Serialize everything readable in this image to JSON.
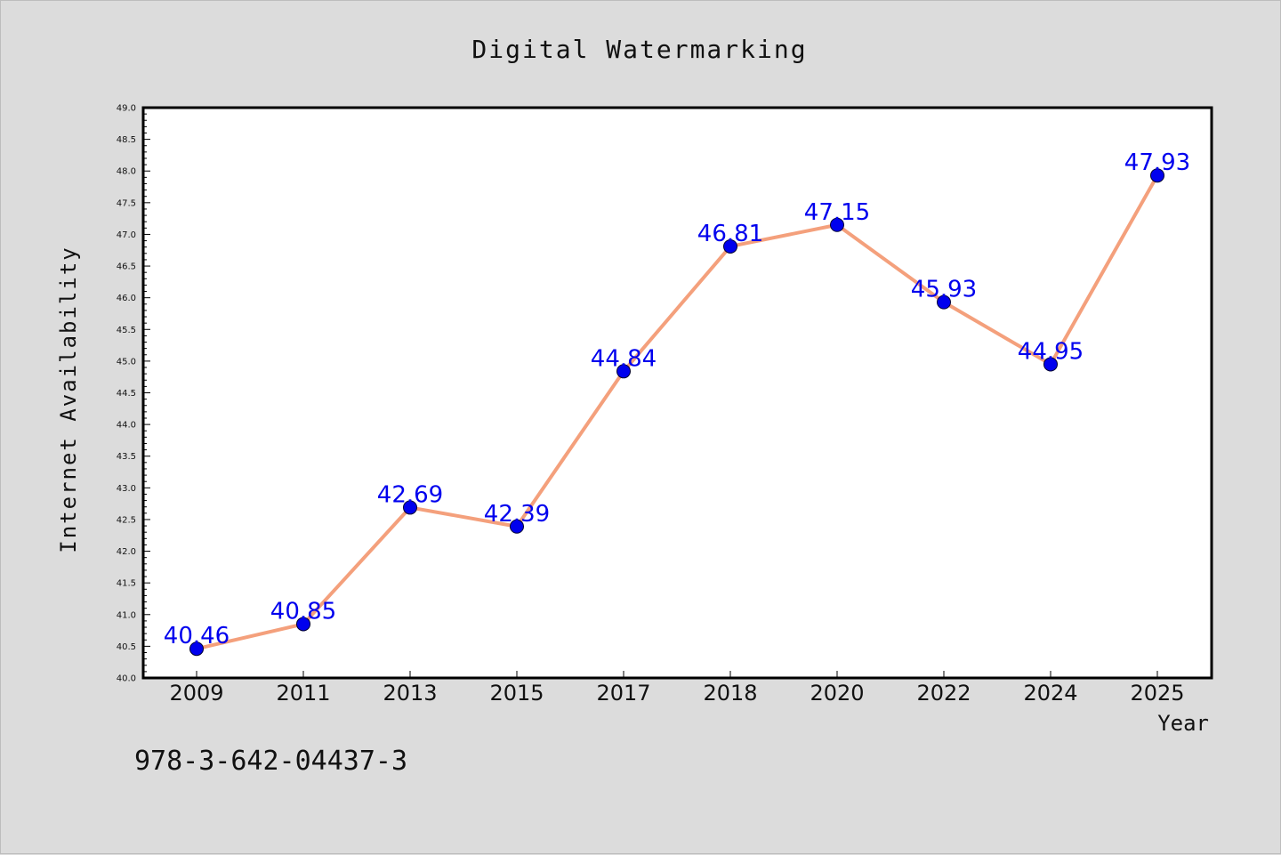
{
  "chart_data": {
    "type": "line",
    "title": "Digital Watermarking",
    "xlabel": "Year",
    "ylabel": "Internet Availability",
    "categories": [
      "2009",
      "2011",
      "2013",
      "2015",
      "2017",
      "2018",
      "2020",
      "2022",
      "2024",
      "2025"
    ],
    "series": [
      {
        "values": [
          40.46,
          40.85,
          42.69,
          42.39,
          44.84,
          46.81,
          47.15,
          45.93,
          44.95,
          47.93
        ]
      }
    ],
    "data_labels": [
      "40.46",
      "40.85",
      "42.69",
      "42.39",
      "44.84",
      "46.81",
      "47.15",
      "45.93",
      "44.95",
      "47.93"
    ],
    "ylim": [
      40.0,
      49.0
    ],
    "yticks": [
      "40.0",
      "40.5",
      "41.0",
      "41.5",
      "42.0",
      "42.5",
      "43.0",
      "43.5",
      "44.0",
      "44.5",
      "45.0",
      "45.5",
      "46.0",
      "46.5",
      "47.0",
      "47.5",
      "48.0",
      "48.5",
      "49.0"
    ],
    "grid": false,
    "line_color": "#f4a07c",
    "marker_color": "#0000ee",
    "label_color": "#0000ee"
  },
  "footnote": "978-3-642-04437-3"
}
